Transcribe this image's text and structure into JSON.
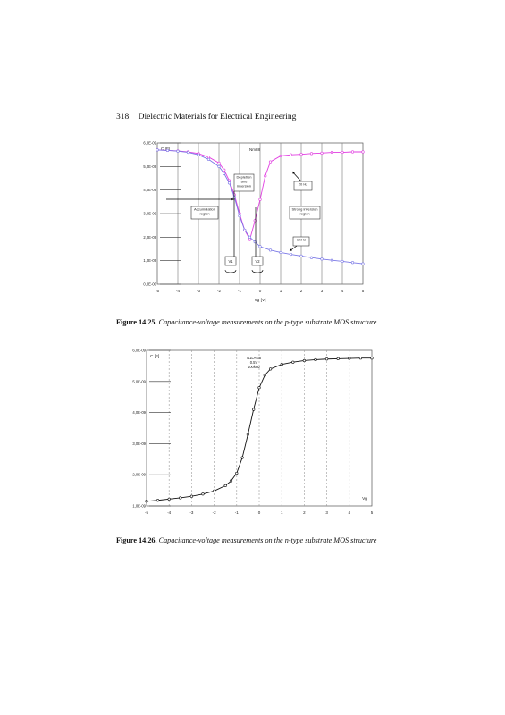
{
  "page": {
    "page_number": "318",
    "running_title": "Dielectric Materials for Electrical Engineering"
  },
  "figure1": {
    "caption_label": "Figure 14.25.",
    "caption_text": "Capacitance-voltage measurements on the p-type substrate MOS structure"
  },
  "figure2": {
    "caption_label": "Figure 14.26.",
    "caption_text": "Capacitance-voltage measurements on the n-type substrate MOS structure"
  },
  "chart_data": [
    {
      "type": "line",
      "ylabel": "C [F]",
      "xlabel": "Vg [V]",
      "legend_title": "Nm88",
      "xlim": [
        -5,
        5
      ],
      "ylim": [
        0,
        6e-09
      ],
      "xticks": [
        "-5",
        "-4",
        "-3",
        "-2",
        "-1",
        "0",
        "1",
        "2",
        "3",
        "4",
        "5"
      ],
      "yticks": [
        "0,0E-00",
        "1,0E-09",
        "2,0E-09",
        "3,0E-09",
        "4,0E-09",
        "5,0E-09",
        "6,0E-09"
      ],
      "grid": "vertical",
      "series": [
        {
          "name": "20 Hz",
          "color": "#e13ee1",
          "x": [
            -5,
            -4.5,
            -4,
            -3.5,
            -3,
            -2.5,
            -2,
            -1.75,
            -1.5,
            -1.25,
            -1,
            -0.75,
            -0.5,
            -0.25,
            0,
            0.25,
            0.5,
            1,
            1.5,
            2,
            2.5,
            3,
            3.5,
            4,
            4.5,
            5
          ],
          "y": [
            5.7e-09,
            5.68e-09,
            5.66e-09,
            5.62e-09,
            5.55e-09,
            5.4e-09,
            5.15e-09,
            4.85e-09,
            4.4e-09,
            3.8e-09,
            3e-09,
            2.3e-09,
            1.9e-09,
            2.7e-09,
            3.6e-09,
            4.6e-09,
            5.2e-09,
            5.45e-09,
            5.5e-09,
            5.52e-09,
            5.55e-09,
            5.57e-09,
            5.6e-09,
            5.6e-09,
            5.62e-09,
            5.62e-09
          ]
        },
        {
          "name": "1 kHz",
          "color": "#7b79e6",
          "x": [
            -5,
            -4.5,
            -4,
            -3.5,
            -3,
            -2.5,
            -2,
            -1.75,
            -1.5,
            -1.25,
            -1,
            -0.75,
            -0.5,
            -0.25,
            0,
            0.5,
            1,
            1.5,
            2,
            2.5,
            3,
            3.5,
            4,
            4.5,
            5
          ],
          "y": [
            5.7e-09,
            5.68e-09,
            5.65e-09,
            5.6e-09,
            5.5e-09,
            5.3e-09,
            5e-09,
            4.7e-09,
            4.3e-09,
            3.7e-09,
            2.9e-09,
            2.3e-09,
            2e-09,
            1.8e-09,
            1.6e-09,
            1.45e-09,
            1.35e-09,
            1.27e-09,
            1.2e-09,
            1.13e-09,
            1.07e-09,
            1.02e-09,
            9.7e-10,
            9.2e-10,
            8.7e-10
          ]
        }
      ],
      "annotations": [
        {
          "text": "Depletion and inversion"
        },
        {
          "text": "20 Hz"
        },
        {
          "text": "Accumulation region"
        },
        {
          "text": "Strong inversion region"
        },
        {
          "text": "1 kHz"
        },
        {
          "text": "V1"
        },
        {
          "text": "V2"
        }
      ]
    },
    {
      "type": "line",
      "ylabel": "C [F]",
      "xlabel": "Vg",
      "legend_lines": [
        "N1LAG5",
        "0.5V",
        "100kHz"
      ],
      "xlim": [
        -5,
        5
      ],
      "ylim": [
        1e-09,
        6e-09
      ],
      "xticks": [
        "-5",
        "-4",
        "-3",
        "-2",
        "-1",
        "0",
        "1",
        "2",
        "3",
        "4",
        "5"
      ],
      "yticks": [
        "1,0E-09",
        "2,0E-09",
        "3,0E-09",
        "4,0E-09",
        "5,0E-09",
        "6,0E-09"
      ],
      "grid": "vertical",
      "series": [
        {
          "name": "",
          "color": "#111111",
          "x": [
            -5,
            -4.5,
            -4,
            -3.5,
            -3,
            -2.5,
            -2,
            -1.5,
            -1.25,
            -1,
            -0.75,
            -0.5,
            -0.25,
            0,
            0.25,
            0.5,
            1,
            1.5,
            2,
            2.5,
            3,
            3.5,
            4,
            4.5,
            5
          ],
          "y": [
            1.15e-09,
            1.18e-09,
            1.22e-09,
            1.26e-09,
            1.31e-09,
            1.38e-09,
            1.48e-09,
            1.65e-09,
            1.8e-09,
            2.05e-09,
            2.55e-09,
            3.3e-09,
            4.1e-09,
            4.8e-09,
            5.2e-09,
            5.4e-09,
            5.55e-09,
            5.62e-09,
            5.67e-09,
            5.7e-09,
            5.72e-09,
            5.73e-09,
            5.74e-09,
            5.75e-09,
            5.75e-09
          ]
        }
      ]
    }
  ]
}
